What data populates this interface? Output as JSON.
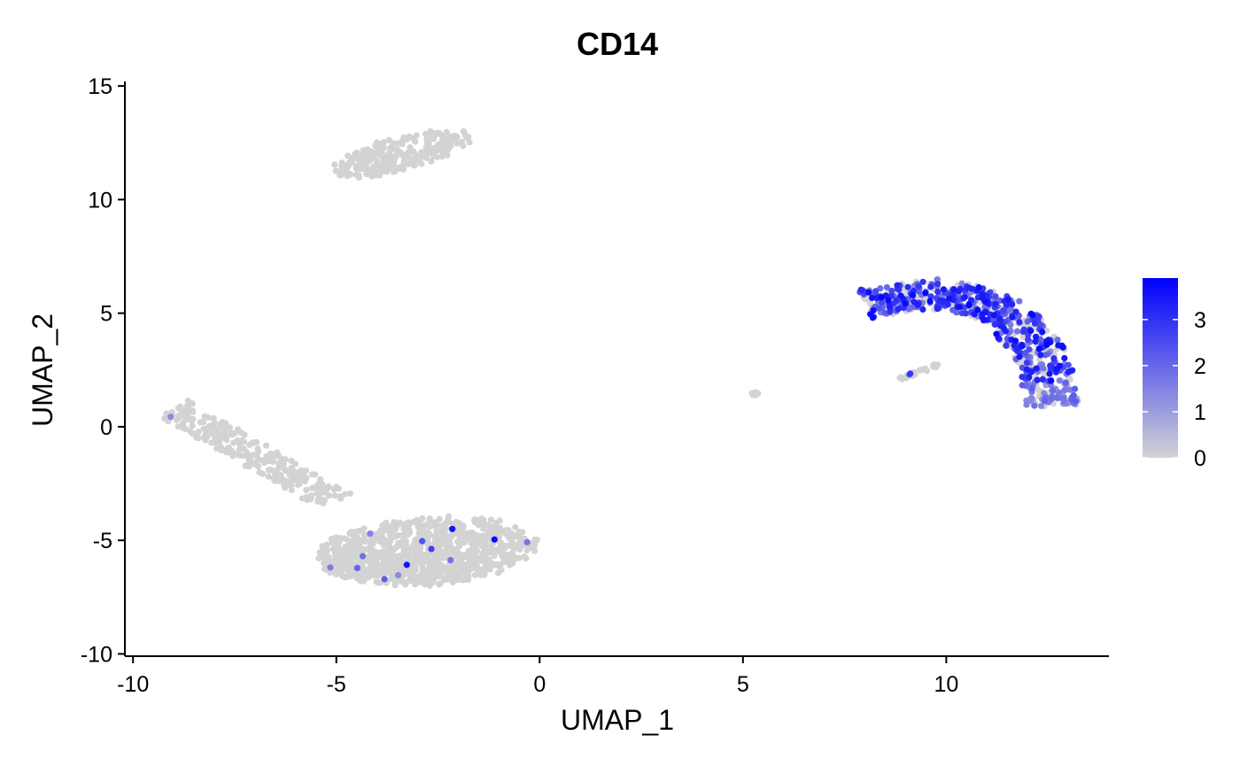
{
  "chart_data": {
    "type": "scatter",
    "title": "CD14",
    "xlabel": "UMAP_1",
    "ylabel": "UMAP_2",
    "xlim": [
      -10.2,
      14.0
    ],
    "ylim": [
      -10.1,
      15.2
    ],
    "xticks": [
      -10,
      -5,
      0,
      5,
      10
    ],
    "yticks": [
      -10,
      -5,
      0,
      5,
      10,
      15
    ],
    "grid": false,
    "legend": {
      "placement": "right",
      "type": "colorbar",
      "ticks": [
        0,
        1,
        2,
        3
      ],
      "min": 0,
      "max": 3.9
    },
    "colors": {
      "low": "#D3D3D3",
      "high": "#0000FF",
      "axis": "#000000"
    },
    "clusters": [
      {
        "name": "top-left",
        "n": 260,
        "shape": "ellipse",
        "center": [
          -3.4,
          12.0
        ],
        "radii": [
          2.0,
          0.75
        ],
        "angle_deg": 27,
        "high_fraction": 0.0
      },
      {
        "name": "bottom-left-main",
        "n": 950,
        "shape": "ellipse",
        "center": [
          -2.8,
          -5.5
        ],
        "radii": [
          2.9,
          1.55
        ],
        "angle_deg": 8,
        "high_fraction": 0.01
      },
      {
        "name": "bottom-left-tail",
        "n": 260,
        "shape": "band",
        "from": [
          -9.0,
          0.8
        ],
        "to": [
          -5.0,
          -3.3
        ],
        "width": 1.0,
        "high_fraction": 0.01
      },
      {
        "name": "small-isolated",
        "n": 10,
        "shape": "ellipse",
        "center": [
          5.3,
          1.45
        ],
        "radii": [
          0.1,
          0.07
        ],
        "angle_deg": 0,
        "high_fraction": 0.0
      },
      {
        "name": "right-arc",
        "n": 700,
        "shape": "arc",
        "points": [
          [
            8.0,
            5.4
          ],
          [
            10.0,
            5.9
          ],
          [
            11.5,
            5.0
          ],
          [
            12.4,
            3.0
          ],
          [
            12.6,
            0.9
          ]
        ],
        "width": 1.3,
        "high_fraction": 0.65,
        "high_until_y": 2.0
      },
      {
        "name": "right-small-stripe",
        "n": 30,
        "shape": "band",
        "from": [
          8.9,
          2.1
        ],
        "to": [
          9.9,
          2.8
        ],
        "width": 0.15,
        "high_fraction": 0.1
      }
    ]
  }
}
